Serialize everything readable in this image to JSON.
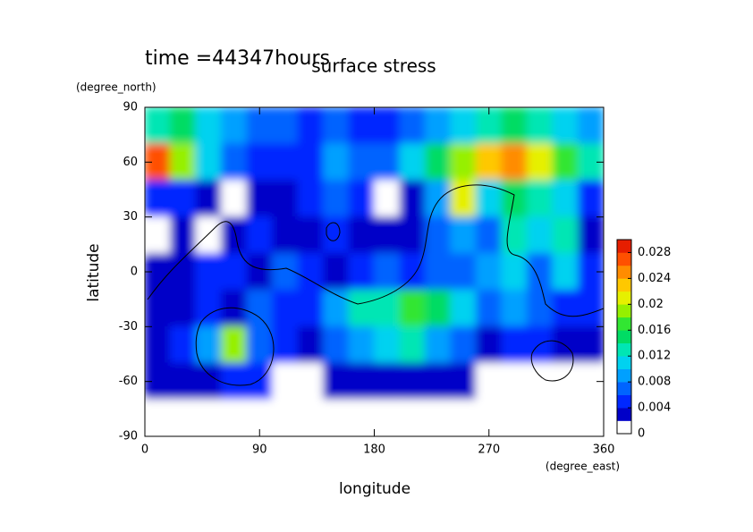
{
  "chart_data": {
    "type": "contour",
    "title": "surface stress",
    "subtitle": "time =44347hours",
    "x_label": "longitude",
    "x_units": "(degree_east)",
    "y_label": "latitude",
    "y_units": "(degree_north)",
    "xlim": [
      0,
      360
    ],
    "xticks": [
      0,
      90,
      180,
      270,
      360
    ],
    "ylim": [
      -90,
      90
    ],
    "yticks": [
      -90,
      -60,
      -30,
      0,
      30,
      60,
      90
    ],
    "x": [
      10,
      30,
      50,
      70,
      90,
      110,
      130,
      150,
      170,
      190,
      210,
      230,
      250,
      270,
      290,
      310,
      330,
      350
    ],
    "y": [
      80,
      60,
      40,
      20,
      0,
      -20,
      -40,
      -60,
      -80
    ],
    "z": [
      [
        0.012,
        0.014,
        0.01,
        0.008,
        0.006,
        0.006,
        0.005,
        0.006,
        0.005,
        0.005,
        0.006,
        0.008,
        0.01,
        0.012,
        0.014,
        0.012,
        0.01,
        0.008
      ],
      [
        0.026,
        0.018,
        0.01,
        0.006,
        0.004,
        0.005,
        0.004,
        0.008,
        0.006,
        0.006,
        0.01,
        0.014,
        0.018,
        0.022,
        0.024,
        0.02,
        0.016,
        0.012
      ],
      [
        0.004,
        0.005,
        0.003,
        0,
        0.003,
        0.002,
        0.004,
        0.006,
        0.004,
        0,
        0.003,
        0.008,
        0.02,
        0.01,
        0.014,
        0.012,
        0.01,
        0.004
      ],
      [
        0,
        0.002,
        0,
        0.003,
        0.004,
        0.003,
        0.002,
        0.005,
        0.003,
        0.002,
        0.003,
        0.006,
        0.008,
        0.006,
        0.012,
        0.01,
        0.012,
        0.002
      ],
      [
        0.002,
        0.003,
        0.004,
        0.005,
        0.003,
        0.006,
        0.004,
        0.002,
        0.004,
        0.006,
        0.004,
        0.006,
        0.006,
        0.008,
        0.01,
        0.006,
        0.01,
        0.004
      ],
      [
        0.002,
        0.002,
        0.004,
        0.003,
        0.006,
        0.005,
        0.004,
        0.008,
        0.012,
        0.012,
        0.016,
        0.014,
        0.01,
        0.006,
        0.008,
        0.006,
        0.004,
        0.004
      ],
      [
        0.003,
        0.004,
        0.008,
        0.018,
        0.006,
        0.004,
        0.003,
        0.006,
        0.008,
        0.01,
        0.012,
        0.008,
        0.006,
        0.003,
        0.004,
        0.004,
        0.003,
        0.002
      ],
      [
        0.002,
        0.002,
        0.003,
        0.004,
        0.004,
        0,
        0.001,
        0.003,
        0.003,
        0.003,
        0.002,
        0.003,
        0.002,
        0,
        0,
        0,
        0,
        0
      ],
      [
        0,
        0,
        0,
        0,
        0,
        0,
        0,
        0,
        0,
        0,
        0,
        0,
        0,
        0,
        0,
        0,
        0,
        0
      ]
    ],
    "colorbar": {
      "lim": [
        0,
        0.03
      ],
      "ticks": [
        0,
        0.004,
        0.008,
        0.012,
        0.016,
        0.02,
        0.024,
        0.028
      ],
      "colors": [
        "#ffffff",
        "#0000c8",
        "#0028ff",
        "#0064ff",
        "#00a0ff",
        "#00d2f0",
        "#00e6b4",
        "#00dc64",
        "#32e632",
        "#96f000",
        "#e6f000",
        "#ffc800",
        "#ff8c00",
        "#ff5000",
        "#e61e00"
      ]
    }
  }
}
